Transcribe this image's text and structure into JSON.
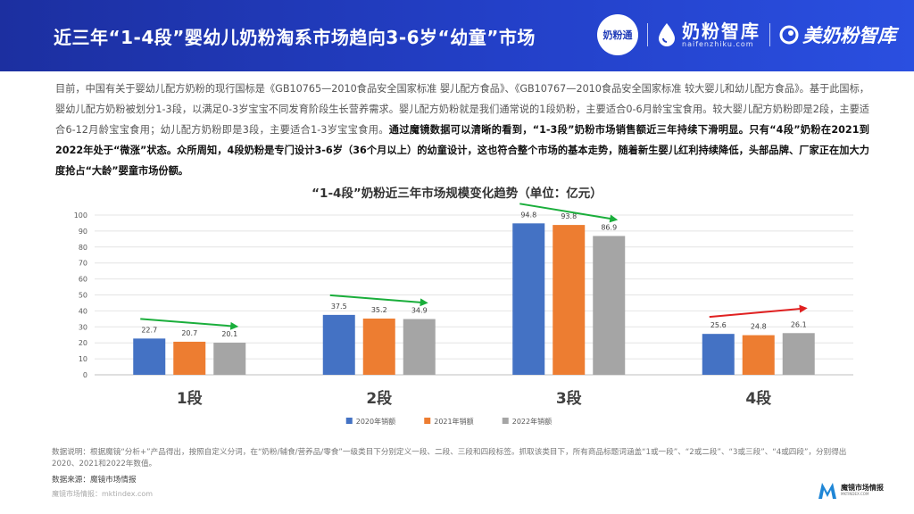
{
  "header": {
    "title": "近三年“1-4段”婴幼儿奶粉淘系市场趋向3-6岁“幼童”市场",
    "logo1_text": "奶粉通",
    "logo2_cn": "奶粉智库",
    "logo2_en": "naifenzhiku.com",
    "logo3_text": "美奶粉智库"
  },
  "body": {
    "text_plain": "目前，中国有关于婴幼儿配方奶粉的现行国标是《GB10765—2010食品安全国家标准 婴儿配方食品》、《GB10767—2010食品安全国家标准 较大婴儿和幼儿配方食品》。基于此国标，婴幼儿配方奶粉被划分1-3段，以满足0-3岁宝宝不同发育阶段生长营养需求。婴儿配方奶粉就是我们通常说的1段奶粉，主要适合0-6月龄宝宝食用。较大婴儿配方奶粉即是2段，主要适合6-12月龄宝宝食用；幼儿配方奶粉即是3段，主要适合1-3岁宝宝食用。",
    "text_bold": "通过魔镜数据可以清晰的看到，“1-3段”奶粉市场销售额近三年持续下滑明显。只有“4段”奶粉在2021到2022年处于“微涨”状态。众所周知，4段奶粉是专门设计3-6岁（36个月以上）的幼童设计，这也符合整个市场的基本走势，随着新生婴儿红利持续降低，头部品牌、厂家正在加大力度抢占“大龄”婴童市场份额。"
  },
  "chart_data": {
    "type": "bar",
    "title": "“1-4段”奶粉近三年市场规模变化趋势（单位：亿元）",
    "categories": [
      "1段",
      "2段",
      "3段",
      "4段"
    ],
    "series": [
      {
        "name": "2020年销额",
        "values": [
          22.7,
          37.5,
          94.8,
          25.6
        ],
        "color": "#4472C4"
      },
      {
        "name": "2021年销额",
        "values": [
          20.7,
          35.2,
          93.8,
          24.8
        ],
        "color": "#ED7D31"
      },
      {
        "name": "2022年销额",
        "values": [
          20.1,
          34.9,
          86.9,
          26.1
        ],
        "color": "#A5A5A5"
      }
    ],
    "ylim": [
      0,
      100
    ],
    "yticks": [
      0,
      10,
      20,
      30,
      40,
      50,
      60,
      70,
      80,
      90,
      100
    ],
    "trend_arrows": [
      {
        "category": "1段",
        "direction": "down",
        "color": "#1AAE3B"
      },
      {
        "category": "2段",
        "direction": "down",
        "color": "#1AAE3B"
      },
      {
        "category": "3段",
        "direction": "down",
        "color": "#1AAE3B"
      },
      {
        "category": "4段",
        "direction": "up",
        "color": "#E02020"
      }
    ],
    "legend_position": "bottom",
    "grid": true
  },
  "footer": {
    "note": "数据说明：根据魔镜“分析+”产品得出，按照自定义分词，在“奶粉/辅食/营养品/零食”一级类目下分别定义一段、二段、三段和四段标签。抓取该类目下，所有商品标题词涵盖“1或一段”、“2或二段”、“3或三段”、“4或四段”，分别得出2020、2021和2022年数值。",
    "source": "数据来源：魔镜市场情报",
    "website": "魔镜市场情报：mktindex.com",
    "logo_cn": "魔镜市场情报",
    "logo_en": "MKTINDEX.COM"
  }
}
